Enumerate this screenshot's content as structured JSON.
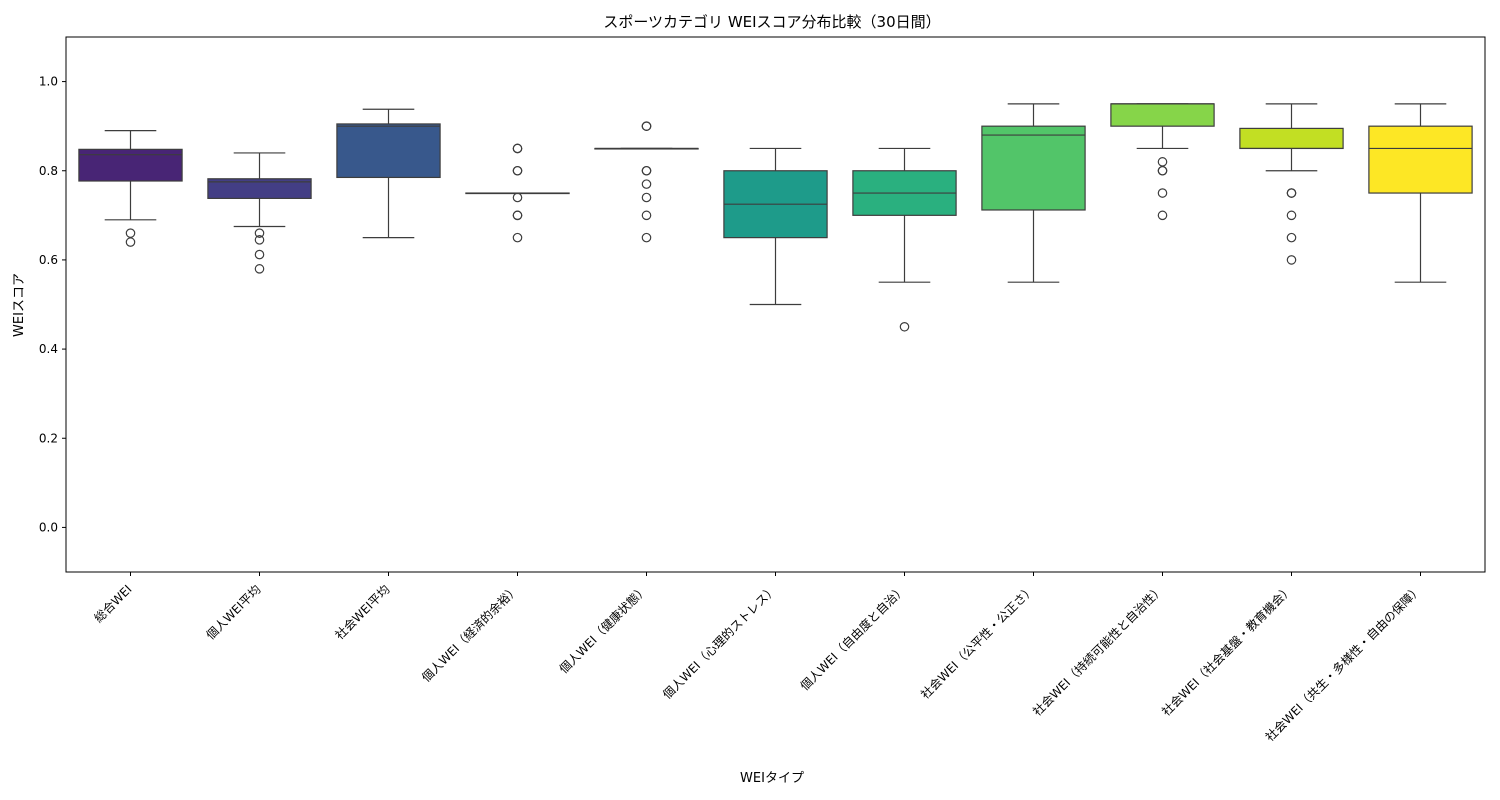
{
  "chart_data": {
    "type": "box",
    "title": "スポーツカテゴリ WEIスコア分布比較（30日間）",
    "xlabel": "WEIタイプ",
    "ylabel": "WEIスコア",
    "ylim": [
      -0.1,
      1.1
    ],
    "yticks": [
      "0.0",
      "0.2",
      "0.4",
      "0.6",
      "0.8",
      "1.0"
    ],
    "grid": false,
    "categories": [
      "総合WEI",
      "個人WEI平均",
      "社会WEI平均",
      "個人WEI（経済的余裕）",
      "個人WEI（健康状態）",
      "個人WEI（心理的ストレス）",
      "個人WEI（自由度と自治）",
      "社会WEI（公平性・公正さ）",
      "社会WEI（持続可能性と自治性）",
      "社会WEI（社会基盤・教育機会）",
      "社会WEI（共生・多様性・自由の保障）"
    ],
    "colors": [
      "#482575",
      "#433e85",
      "#38588c",
      "#2d708e",
      "#25858e",
      "#1e9b8a",
      "#2ab07f",
      "#52c569",
      "#86d549",
      "#c2df23",
      "#fde725"
    ],
    "boxes": [
      {
        "whislo": 0.69,
        "q1": 0.777,
        "med": 0.836,
        "q3": 0.848,
        "whishi": 0.89,
        "fliers": [
          0.66,
          0.64
        ]
      },
      {
        "whislo": 0.675,
        "q1": 0.738,
        "med": 0.775,
        "q3": 0.782,
        "whishi": 0.84,
        "fliers": [
          0.66,
          0.645,
          0.612,
          0.58
        ]
      },
      {
        "whislo": 0.65,
        "q1": 0.785,
        "med": 0.9,
        "q3": 0.905,
        "whishi": 0.938,
        "fliers": []
      },
      {
        "whislo": 0.75,
        "q1": 0.75,
        "med": 0.75,
        "q3": 0.75,
        "whishi": 0.75,
        "fliers": [
          0.85,
          0.85,
          0.8,
          0.8,
          0.74,
          0.7,
          0.7,
          0.65
        ]
      },
      {
        "whislo": 0.85,
        "q1": 0.85,
        "med": 0.85,
        "q3": 0.85,
        "whishi": 0.85,
        "fliers": [
          0.9,
          0.9,
          0.8,
          0.8,
          0.77,
          0.74,
          0.7,
          0.65
        ]
      },
      {
        "whislo": 0.5,
        "q1": 0.65,
        "med": 0.725,
        "q3": 0.8,
        "whishi": 0.85,
        "fliers": []
      },
      {
        "whislo": 0.55,
        "q1": 0.7,
        "med": 0.75,
        "q3": 0.8,
        "whishi": 0.85,
        "fliers": [
          0.45
        ]
      },
      {
        "whislo": 0.55,
        "q1": 0.712,
        "med": 0.88,
        "q3": 0.9,
        "whishi": 0.95,
        "fliers": []
      },
      {
        "whislo": 0.85,
        "q1": 0.9,
        "med": 0.95,
        "q3": 0.95,
        "whishi": 0.95,
        "fliers": [
          0.82,
          0.8,
          0.8,
          0.75,
          0.7
        ]
      },
      {
        "whislo": 0.8,
        "q1": 0.85,
        "med": 0.85,
        "q3": 0.895,
        "whishi": 0.95,
        "fliers": [
          0.75,
          0.75,
          0.7,
          0.65,
          0.6
        ]
      },
      {
        "whislo": 0.55,
        "q1": 0.75,
        "med": 0.85,
        "q3": 0.9,
        "whishi": 0.95,
        "fliers": []
      }
    ]
  }
}
